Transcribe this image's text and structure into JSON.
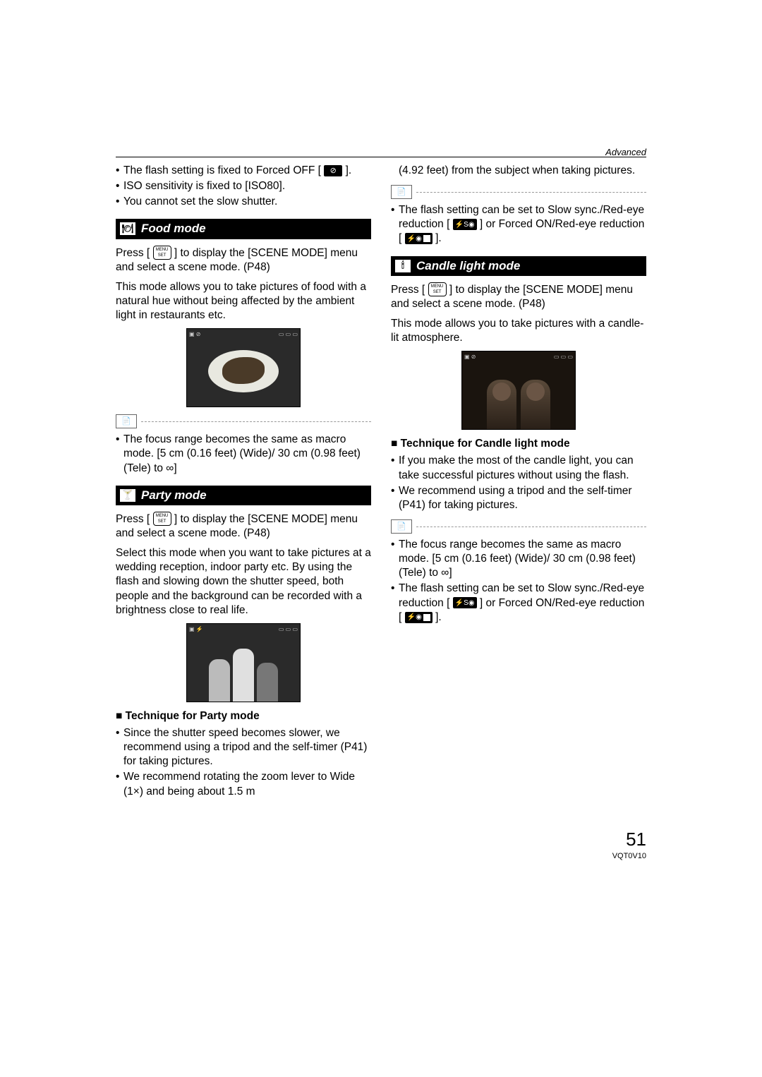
{
  "header": {
    "section": "Advanced"
  },
  "left": {
    "intro_bullets": [
      "The flash setting is fixed to Forced OFF [",
      "ISO sensitivity is fixed to [ISO80].",
      "You cannot set the slow shutter."
    ],
    "intro_bullet0_suffix": "].",
    "food": {
      "title": "Food mode",
      "icon_label": "food",
      "p1a": "Press [",
      "p1b": "] to display the [SCENE MODE] menu and select a scene mode. (P48)",
      "p2": "This mode allows you to take pictures of food with a natural hue without being affected by the ambient light in restaurants etc.",
      "note_bullet": "The focus range becomes the same as macro mode. [5 cm (0.16 feet) (Wide)/ 30 cm (0.98 feet) (Tele) to ∞]"
    },
    "party": {
      "title": "Party mode",
      "p1a": "Press [",
      "p1b": "] to display the [SCENE MODE] menu and select a scene mode. (P48)",
      "p2": "Select this mode when you want to take pictures at a wedding reception, indoor party etc. By using the flash and slowing down the shutter speed, both people and the background can be recorded with a brightness close to real life.",
      "tech_head": "Technique for Party mode",
      "tech_bullets": [
        "Since the shutter speed becomes slower, we recommend using a tripod and the self-timer (P41) for taking pictures.",
        "We recommend rotating the zoom lever to Wide (1×) and being about 1.5 m"
      ]
    }
  },
  "right": {
    "cont": "(4.92 feet) from the subject when taking pictures.",
    "note_bullet1a": "The flash setting can be set to Slow sync./Red-eye reduction [",
    "note_bullet1b": "] or Forced ON/Red-eye reduction [",
    "note_bullet1c": "].",
    "candle": {
      "title": "Candle light mode",
      "p1a": "Press [",
      "p1b": "] to display the [SCENE MODE] menu and select a scene mode. (P48)",
      "p2": "This mode allows you to take pictures with a candle-lit atmosphere.",
      "tech_head": "Technique for Candle light mode",
      "tech_bullets": [
        "If you make the most of the candle light, you can take successful pictures without using the flash.",
        "We recommend using a tripod and the self-timer (P41) for taking pictures."
      ],
      "note_bullets": {
        "b1": "The focus range becomes the same as macro mode. [5 cm (0.16 feet) (Wide)/ 30 cm (0.98 feet) (Tele) to ∞]",
        "b2a": "The flash setting can be set to Slow sync./Red-eye reduction [",
        "b2b": "] or Forced ON/Red-eye reduction [",
        "b2c": "]."
      }
    }
  },
  "icons": {
    "menu_set_top": "MENU",
    "menu_set_bottom": "SET",
    "flash_off": "⊘",
    "flash_s": "⚡S◉",
    "flash_on": "⚡◉",
    "note": "📄",
    "food_mode": "🍽",
    "party_mode": "🍸",
    "candle_mode": "🕯"
  },
  "footer": {
    "page": "51",
    "docid": "VQT0V10"
  },
  "style": {
    "text_color": "#000000",
    "bg_color": "#ffffff",
    "header_bg": "#000000",
    "header_fg": "#ffffff"
  }
}
